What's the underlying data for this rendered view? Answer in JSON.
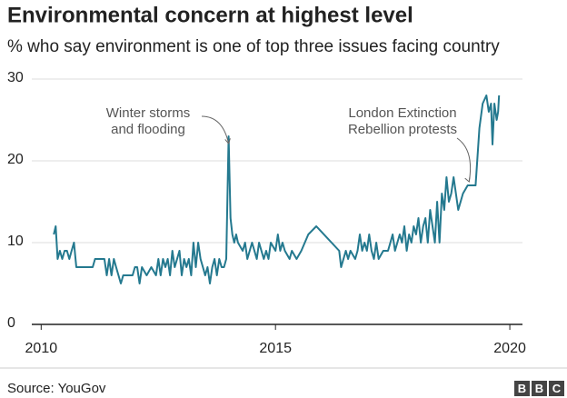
{
  "chart_data": {
    "type": "line",
    "title": "Environmental concern at highest level",
    "subtitle": "% who say environment is one of top three issues facing country",
    "source": "Source: YouGov",
    "logo": [
      "B",
      "B",
      "C"
    ],
    "xlim": [
      2009.8,
      2020.27
    ],
    "xticks": [
      2010,
      2015,
      2020
    ],
    "ylim": [
      0,
      30
    ],
    "yticks": [
      0,
      10,
      20,
      30
    ],
    "grid": true,
    "annotations": [
      {
        "lines": [
          "Winter storms",
          "and flooding"
        ],
        "x": 2014.0,
        "y": 23
      },
      {
        "lines": [
          "London Extinction",
          "Rebellion protests"
        ],
        "x": 2019.17,
        "y": 17
      }
    ],
    "x": [
      2010.27,
      2010.31,
      2010.35,
      2010.4,
      2010.45,
      2010.5,
      2010.55,
      2010.6,
      2010.65,
      2010.7,
      2010.75,
      2010.85,
      2011.0,
      2011.1,
      2011.15,
      2011.25,
      2011.35,
      2011.4,
      2011.45,
      2011.5,
      2011.55,
      2011.6,
      2011.65,
      2011.7,
      2011.75,
      2011.85,
      2011.95,
      2012.0,
      2012.05,
      2012.1,
      2012.15,
      2012.25,
      2012.35,
      2012.45,
      2012.5,
      2012.55,
      2012.6,
      2012.65,
      2012.7,
      2012.75,
      2012.8,
      2012.85,
      2012.9,
      2012.95,
      2013.0,
      2013.05,
      2013.1,
      2013.15,
      2013.2,
      2013.25,
      2013.3,
      2013.35,
      2013.4,
      2013.45,
      2013.5,
      2013.55,
      2013.6,
      2013.65,
      2013.7,
      2013.75,
      2013.8,
      2013.85,
      2013.9,
      2013.95,
      2014.0,
      2014.04,
      2014.08,
      2014.12,
      2014.16,
      2014.2,
      2014.3,
      2014.35,
      2014.4,
      2014.45,
      2014.5,
      2014.55,
      2014.6,
      2014.65,
      2014.7,
      2014.75,
      2014.8,
      2014.85,
      2014.9,
      2015.0,
      2015.05,
      2015.1,
      2015.15,
      2015.2,
      2015.3,
      2015.35,
      2015.45,
      2015.55,
      2015.7,
      2015.87,
      2016.36,
      2016.4,
      2016.45,
      2016.5,
      2016.55,
      2016.6,
      2016.7,
      2016.75,
      2016.8,
      2016.85,
      2016.9,
      2016.95,
      2017.0,
      2017.05,
      2017.1,
      2017.15,
      2017.2,
      2017.3,
      2017.4,
      2017.45,
      2017.5,
      2017.55,
      2017.6,
      2017.65,
      2017.7,
      2017.75,
      2017.8,
      2017.85,
      2017.9,
      2017.95,
      2018.0,
      2018.05,
      2018.1,
      2018.15,
      2018.2,
      2018.25,
      2018.3,
      2018.35,
      2018.4,
      2018.45,
      2018.5,
      2018.55,
      2018.6,
      2018.65,
      2018.7,
      2018.75,
      2018.8,
      2018.9,
      2019.0,
      2019.1,
      2019.17,
      2019.27,
      2019.35,
      2019.42,
      2019.5,
      2019.55,
      2019.6,
      2019.63,
      2019.67,
      2019.72,
      2019.75,
      2019.77
    ],
    "series": [
      {
        "name": "Environment",
        "color": "#24798f",
        "values": [
          11,
          12,
          8,
          9,
          8,
          9,
          9,
          8,
          9,
          10,
          7,
          7,
          7,
          7,
          8,
          8,
          8,
          6,
          8,
          6,
          8,
          7,
          6,
          5,
          6,
          6,
          6,
          7,
          7,
          5,
          7,
          6,
          7,
          6,
          8,
          6,
          8,
          7,
          8,
          6,
          9,
          7,
          8,
          9,
          6,
          8,
          7,
          8,
          6,
          10,
          7,
          10,
          8,
          7,
          6,
          7,
          5,
          7,
          8,
          6,
          8,
          7,
          7,
          8,
          23,
          13,
          11,
          10,
          11,
          10,
          9,
          10,
          8,
          9,
          10,
          9,
          8,
          10,
          9,
          8,
          9,
          8,
          10,
          9,
          11,
          9,
          10,
          9,
          8,
          9,
          8,
          9,
          11,
          12,
          9,
          7,
          8,
          9,
          8,
          9,
          8,
          9,
          11,
          9,
          10,
          9,
          11,
          9,
          8,
          10,
          8,
          9,
          9,
          10,
          11,
          9,
          10,
          11,
          10,
          12,
          9,
          11,
          10,
          12,
          11,
          13,
          10,
          12,
          13,
          10,
          14,
          12,
          10,
          15,
          10,
          16,
          14,
          18,
          15,
          16,
          18,
          14,
          16,
          17,
          17,
          17,
          24,
          27,
          28,
          26,
          27,
          22,
          27,
          25,
          26,
          28
        ]
      }
    ]
  }
}
